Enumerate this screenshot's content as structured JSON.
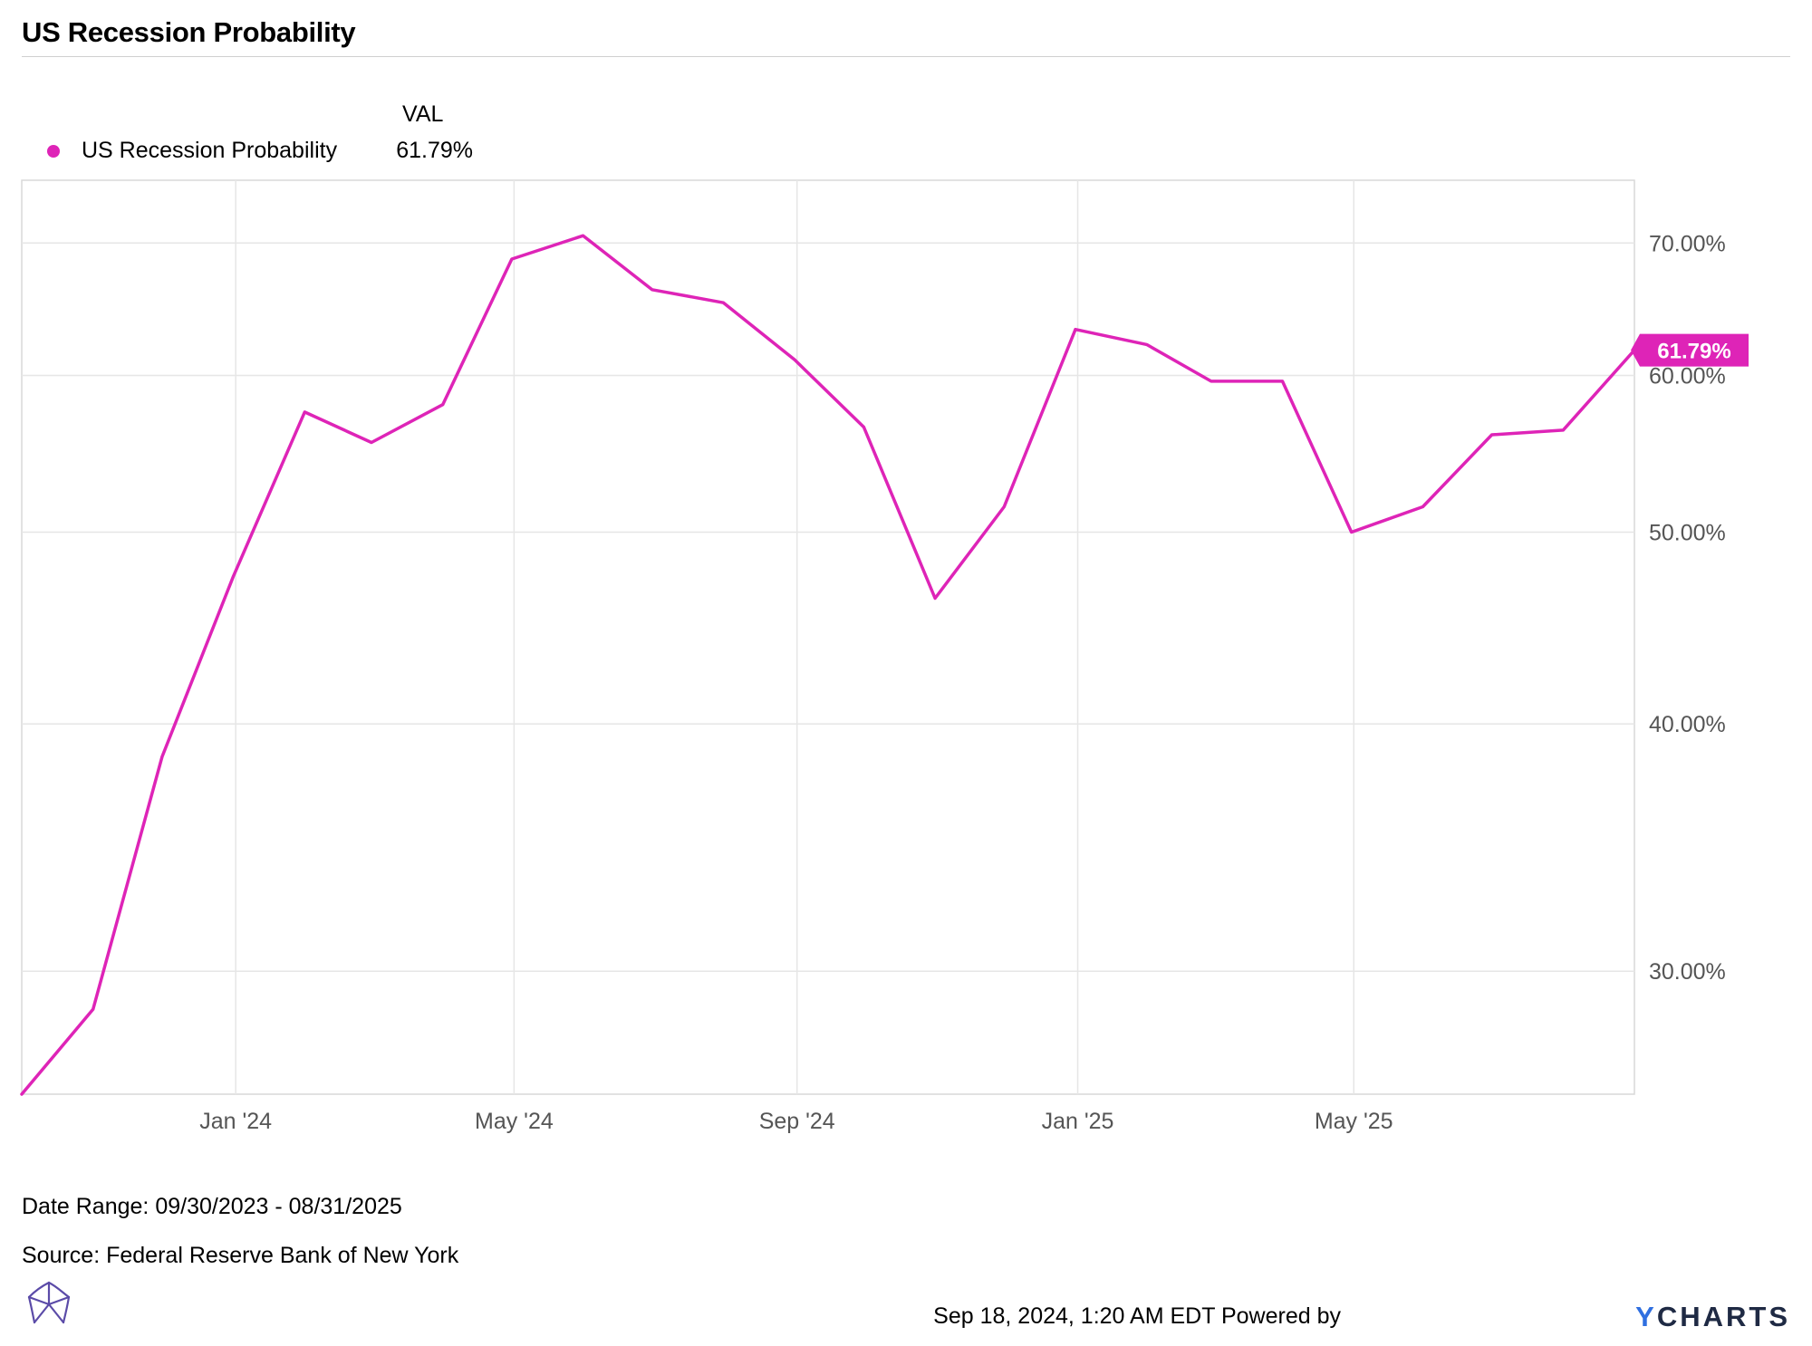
{
  "title": "US Recession Probability",
  "legend": {
    "column_header": "VAL",
    "items": [
      {
        "name": "US Recession Probability",
        "value": "61.79%"
      }
    ]
  },
  "colors": {
    "series": "#de24b7",
    "grid": "#e6e6e6",
    "axis_text": "#555555"
  },
  "footer": {
    "date_range": "Date Range: 09/30/2023 - 08/31/2025",
    "source": "Source: Federal Reserve Bank of New York",
    "timestamp": "Sep 18, 2024, 1:20 AM EDT Powered by",
    "brand_prefix": "Y",
    "brand_rest": "CHARTS"
  },
  "chart_data": {
    "type": "line",
    "title": "US Recession Probability",
    "xlabel": "",
    "ylabel": "",
    "y_scale": "log",
    "ylim": [
      26.0,
      75.3
    ],
    "xlim": [
      "2023-09-30",
      "2025-08-31"
    ],
    "grid": true,
    "legend_position": "top-left",
    "x_ticks": [
      {
        "date": "2024-01-01",
        "label": "Jan '24"
      },
      {
        "date": "2024-05-01",
        "label": "May '24"
      },
      {
        "date": "2024-09-01",
        "label": "Sep '24"
      },
      {
        "date": "2025-01-01",
        "label": "Jan '25"
      },
      {
        "date": "2025-05-01",
        "label": "May '25"
      }
    ],
    "y_ticks": [
      {
        "value": 30,
        "label": "30.00%"
      },
      {
        "value": 40,
        "label": "40.00%"
      },
      {
        "value": 50,
        "label": "50.00%"
      },
      {
        "value": 60,
        "label": "60.00%"
      },
      {
        "value": 70,
        "label": "70.00%"
      }
    ],
    "series": [
      {
        "name": "US Recession Probability",
        "last_value_label": "61.79%",
        "x": [
          "2023-09-30",
          "2023-10-31",
          "2023-11-30",
          "2023-12-31",
          "2024-01-31",
          "2024-02-29",
          "2024-03-31",
          "2024-04-30",
          "2024-05-31",
          "2024-06-30",
          "2024-07-31",
          "2024-08-31",
          "2024-09-30",
          "2024-10-31",
          "2024-11-30",
          "2024-12-31",
          "2025-01-31",
          "2025-02-28",
          "2025-03-31",
          "2025-04-30",
          "2025-05-31",
          "2025-06-30",
          "2025-07-31",
          "2025-08-31"
        ],
        "y": [
          26.0,
          28.7,
          38.5,
          47.5,
          57.5,
          55.5,
          58.0,
          68.7,
          70.6,
          66.3,
          65.3,
          61.1,
          56.5,
          46.3,
          51.5,
          63.3,
          62.2,
          59.6,
          59.6,
          50.0,
          51.5,
          56.0,
          56.3,
          61.79
        ]
      }
    ]
  }
}
